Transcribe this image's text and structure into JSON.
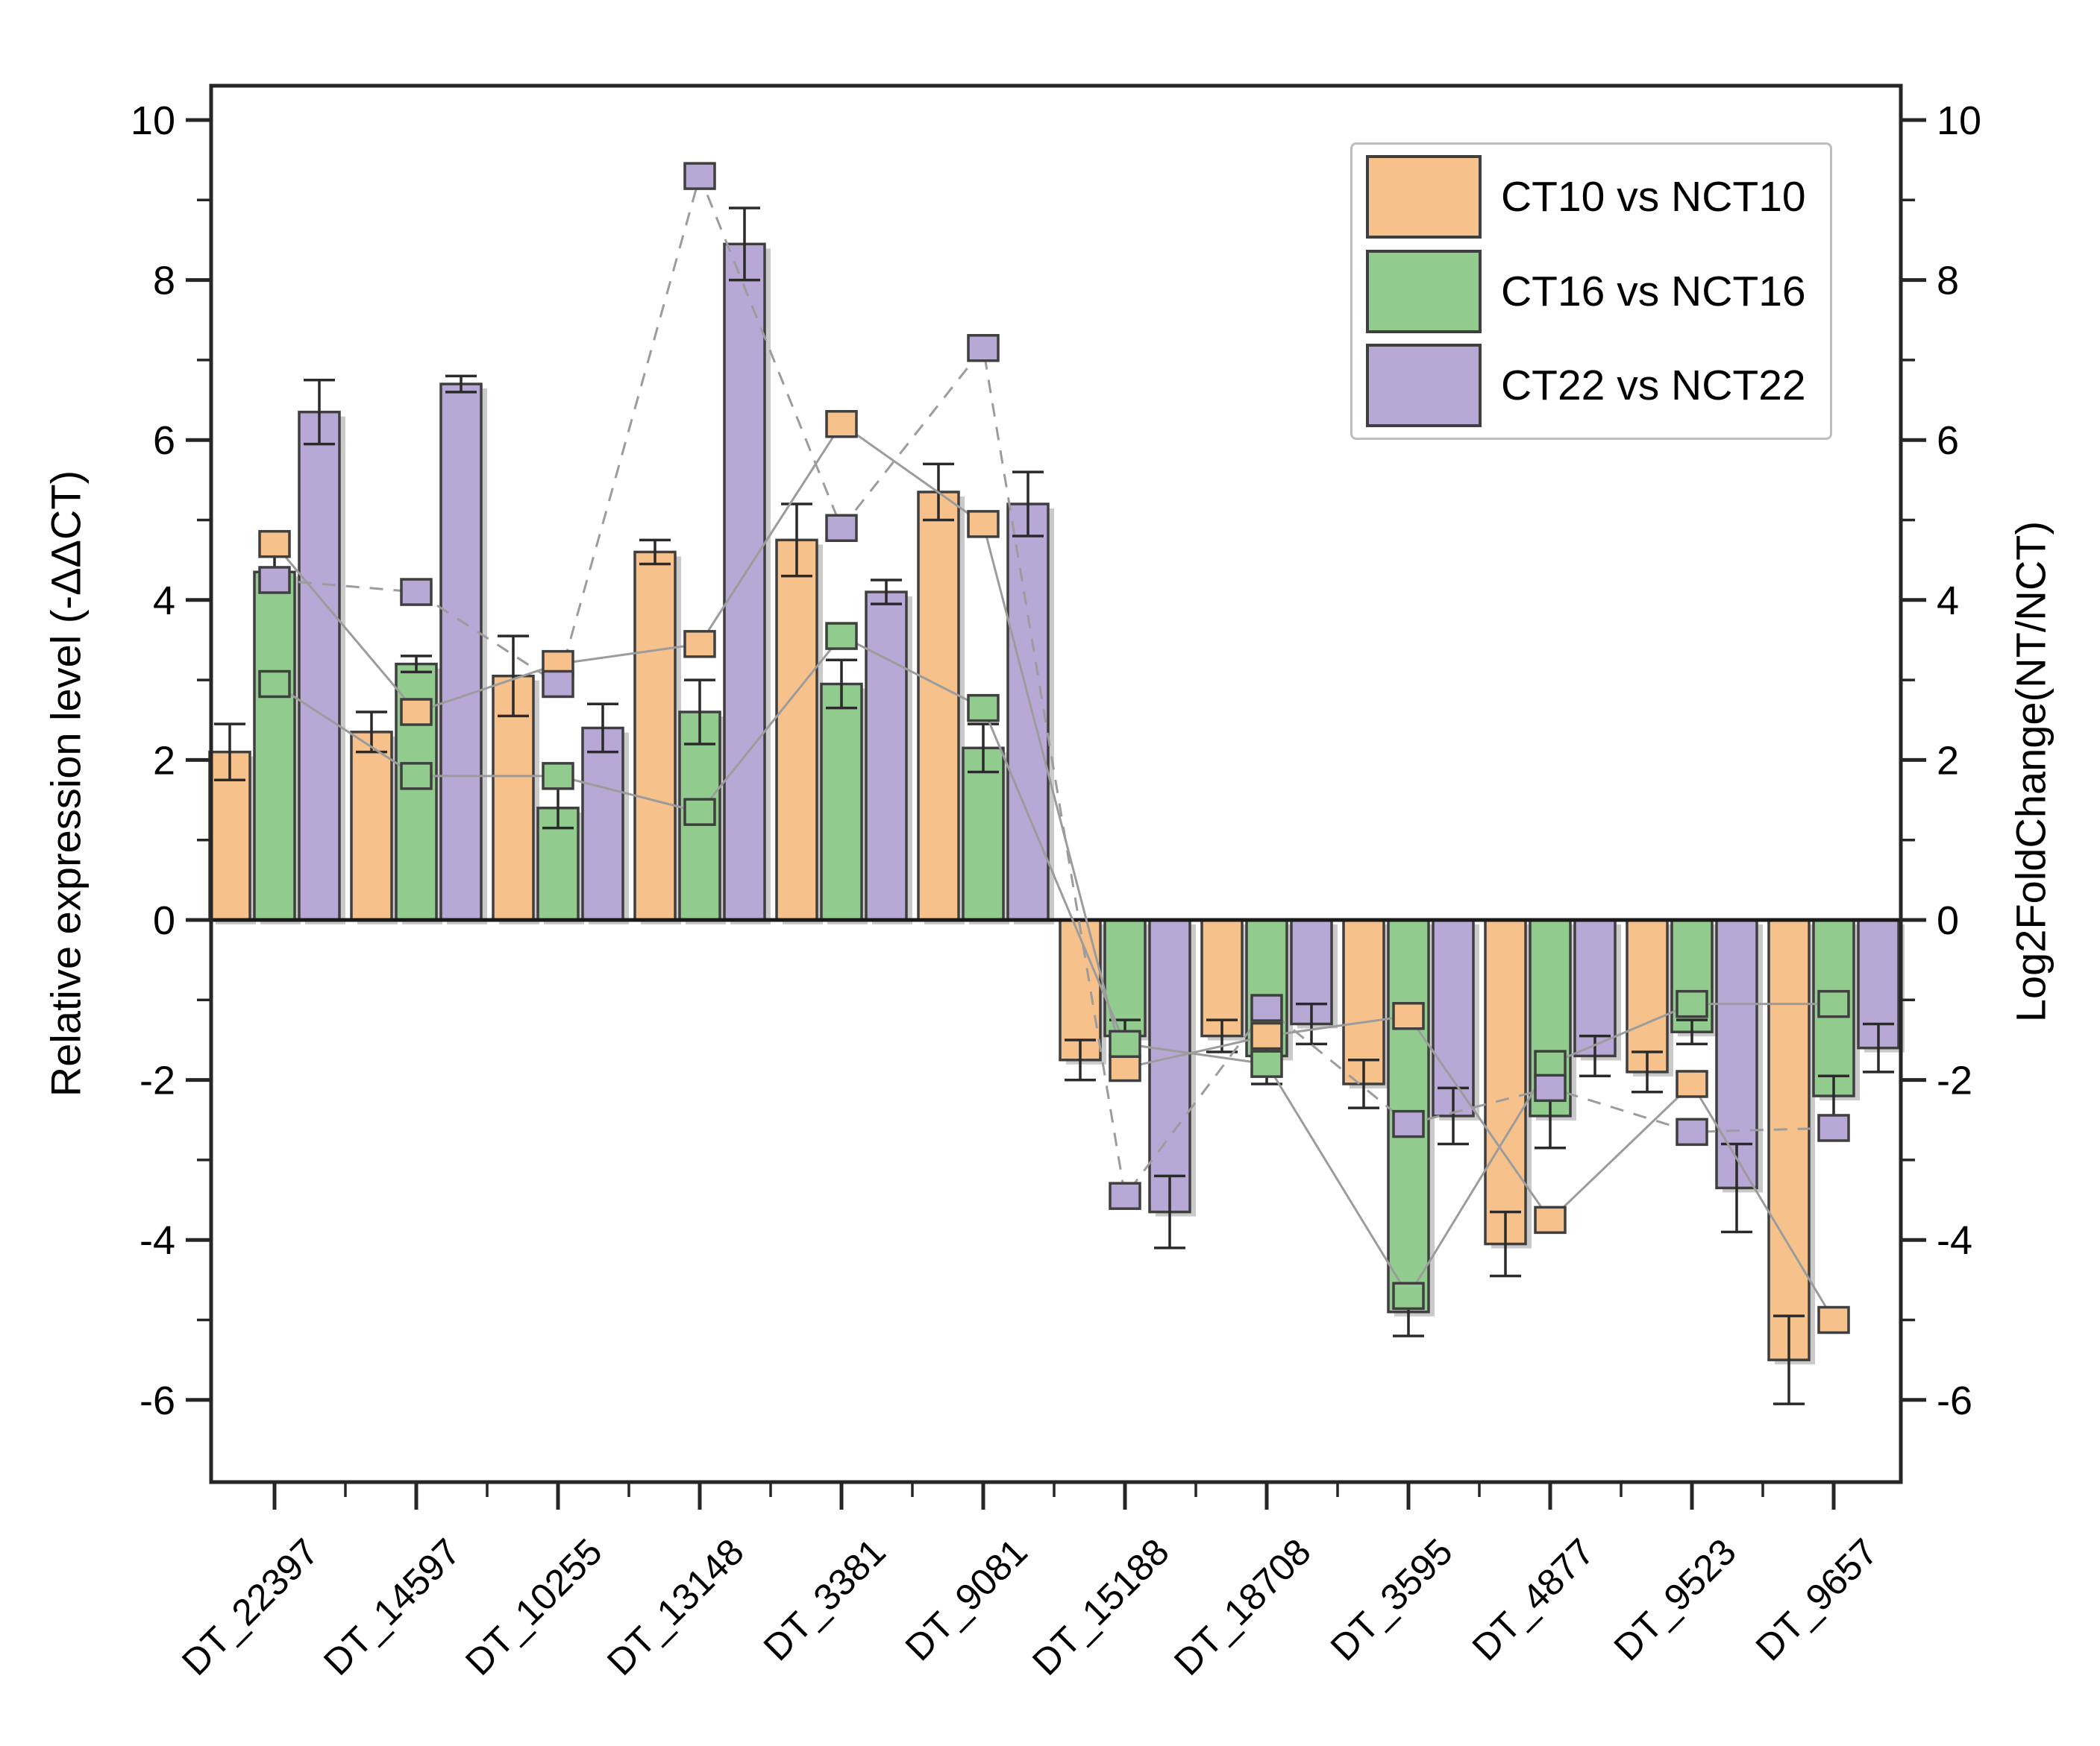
{
  "chart_data": {
    "type": "bar",
    "title": "",
    "categories": [
      "DT_22397",
      "DT_14597",
      "DT_10255",
      "DT_13148",
      "DT_3381",
      "DT_9081",
      "DT_15188",
      "DT_18708",
      "DT_3595",
      "DT_4877",
      "DT_9523",
      "DT_9657"
    ],
    "left_axis": {
      "label": "Relative expression level (-ΔΔCT)",
      "major_ticks": [
        10,
        8,
        6,
        4,
        2,
        0,
        -2,
        -4,
        -6
      ],
      "minor_ticks": [
        9,
        7,
        5,
        3,
        1,
        -1,
        -3,
        -5
      ],
      "range": [
        -7.03,
        10.43
      ]
    },
    "right_axis": {
      "label": "Log2FoldChange(NT/NCT)",
      "major_ticks": [
        10,
        8,
        6,
        4,
        2,
        0,
        -2,
        -4,
        -6
      ],
      "minor_ticks": [
        9,
        7,
        5,
        3,
        1,
        -1,
        -3,
        -5
      ],
      "range": [
        -7.03,
        10.43
      ]
    },
    "bar_series": [
      {
        "name": "CT10 vs NCT10",
        "color": "#F7C18C",
        "values": [
          2.1,
          2.35,
          3.05,
          4.6,
          4.75,
          5.35,
          -1.75,
          -1.45,
          -2.05,
          -4.05,
          -1.9,
          -5.5
        ],
        "errors": [
          0.35,
          0.25,
          0.5,
          0.15,
          0.45,
          0.35,
          0.25,
          0.2,
          0.3,
          0.4,
          0.25,
          0.55
        ]
      },
      {
        "name": "CT16 vs NCT16",
        "color": "#91CC8E",
        "values": [
          4.35,
          3.2,
          1.4,
          2.6,
          2.95,
          2.15,
          -1.45,
          -1.7,
          -4.9,
          -2.45,
          -1.4,
          -2.2
        ],
        "errors": [
          0.2,
          0.1,
          0.25,
          0.4,
          0.3,
          0.3,
          0.2,
          0.35,
          0.3,
          0.4,
          0.15,
          0.25
        ]
      },
      {
        "name": "CT22 vs NCT22",
        "color": "#B8A8D6",
        "values": [
          6.35,
          6.7,
          2.4,
          8.45,
          4.1,
          5.2,
          -3.65,
          -1.3,
          -2.45,
          -1.7,
          -3.35,
          -1.6
        ],
        "errors": [
          0.4,
          0.1,
          0.3,
          0.45,
          0.15,
          0.4,
          0.45,
          0.25,
          0.35,
          0.25,
          0.55,
          0.3
        ]
      }
    ],
    "scatter_series": [
      {
        "name": "CT10 vs NCT10 Log2FC",
        "color": "#F7C18C",
        "line": "solid",
        "values": [
          4.7,
          2.6,
          3.2,
          3.45,
          6.2,
          4.95,
          -1.85,
          -1.45,
          -1.2,
          -3.75,
          -2.05,
          -5.0
        ]
      },
      {
        "name": "CT16 vs NCT16 Log2FC",
        "color": "#91CC8E",
        "line": "solid",
        "values": [
          2.95,
          1.8,
          1.8,
          1.35,
          3.55,
          2.65,
          -1.55,
          -1.8,
          -4.7,
          -1.8,
          -1.05,
          -1.05
        ]
      },
      {
        "name": "CT22 vs NCT22 Log2FC",
        "color": "#B8A8D6",
        "line": "dashed",
        "values": [
          4.25,
          4.1,
          2.95,
          9.3,
          4.9,
          7.15,
          -3.45,
          -1.1,
          -2.55,
          -2.1,
          -2.65,
          -2.6
        ]
      }
    ],
    "legend": {
      "position": "top-right",
      "entries": [
        "CT10 vs NCT10",
        "CT16 vs NCT16",
        "CT22 vs NCT22"
      ]
    },
    "grid": false
  },
  "style": {
    "background": "#ffffff",
    "bar_border": "#3f3f3f",
    "shadow_color": "#8a8a8a",
    "error_color": "#2a2a2a",
    "connector_color": "#9c9c9c",
    "frame_color": "#262626",
    "text_color": "#000000",
    "legend_border": "#bdbdbd"
  }
}
